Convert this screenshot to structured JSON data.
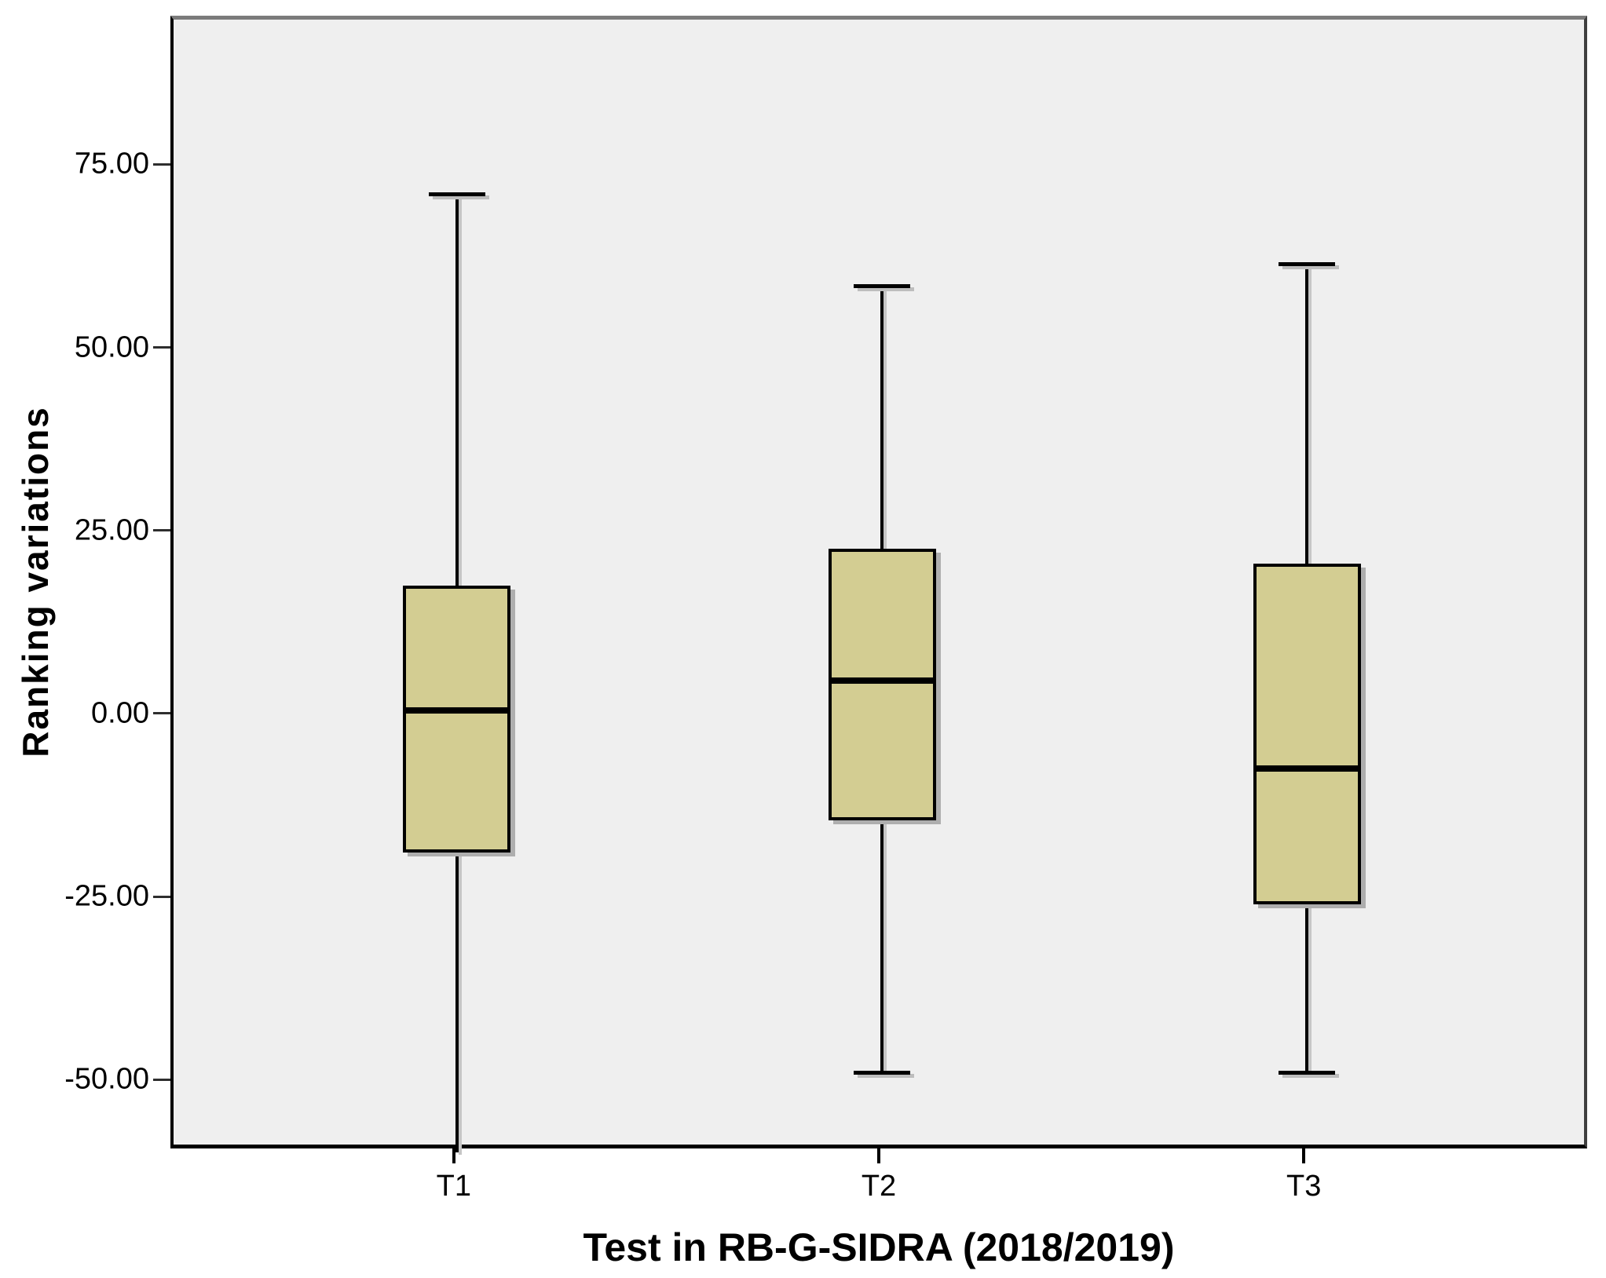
{
  "figure": {
    "y_axis_title": "Ranking variations",
    "x_axis_title": "Test in RB-G-SIDRA (2018/2019)"
  },
  "chart_data": {
    "type": "boxplot",
    "title": "",
    "xlabel": "Test in RB-G-SIDRA (2018/2019)",
    "ylabel": "Ranking variations",
    "categories": [
      "T1",
      "T2",
      "T3"
    ],
    "y_ticks": [
      75,
      50,
      25,
      0,
      -25,
      -50
    ],
    "y_tick_labels": [
      "75.00",
      "50.00",
      "25.00",
      "0.00",
      "-25.00",
      "-50.00"
    ],
    "ylim": [
      -59.4,
      95.3
    ],
    "grid": false,
    "legend": null,
    "series": [
      {
        "category": "T1",
        "whisker_high": 71.5,
        "q3": 18,
        "median": 1,
        "q1": -18.5,
        "whisker_low": -59.4,
        "whisker_low_clipped": true
      },
      {
        "category": "T2",
        "whisker_high": 59,
        "q3": 23,
        "median": 5,
        "q1": -14,
        "whisker_low": -48.5,
        "whisker_low_clipped": false
      },
      {
        "category": "T3",
        "whisker_high": 62,
        "q3": 21,
        "median": -7,
        "q1": -25.5,
        "whisker_low": -48.5,
        "whisker_low_clipped": false
      }
    ],
    "colors": {
      "box_fill": "#d3cd92",
      "box_border": "#000000",
      "plot_background": "#efefef",
      "figure_background": "#ffffff",
      "shadow": "#aeaeae"
    }
  }
}
